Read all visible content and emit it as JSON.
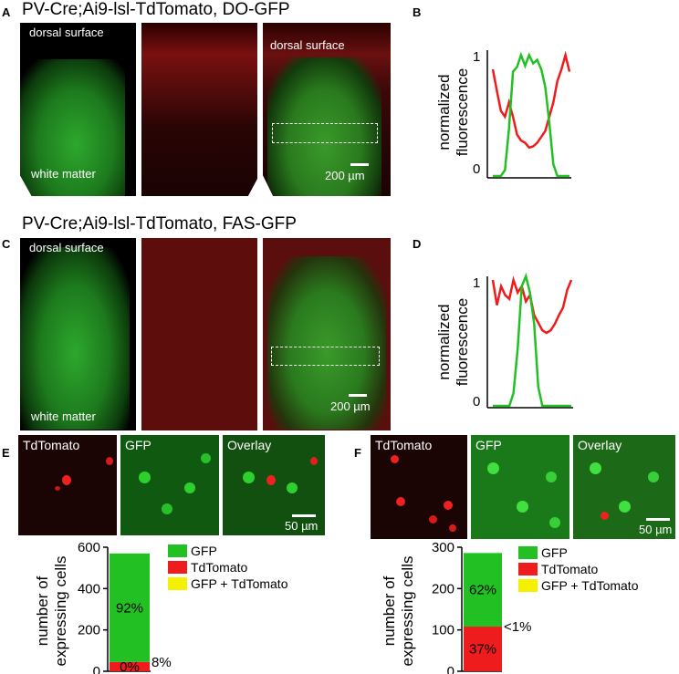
{
  "panel_labels": {
    "A": "A",
    "B": "B",
    "C": "C",
    "D": "D",
    "E": "E",
    "F": "F"
  },
  "row_a": {
    "title": "PV-Cre;Ai9-lsl-TdTomato, DO-GFP",
    "top_label": "dorsal surface",
    "bottom_label": "white matter",
    "scale_label": "200 µm"
  },
  "row_c": {
    "title": "PV-Cre;Ai9-lsl-TdTomato, FAS-GFP",
    "top_label": "dorsal surface",
    "bottom_label": "white matter",
    "scale_label": "200 µm"
  },
  "plot_b": {
    "ylabel_line1": "normalized",
    "ylabel_line2": "fluorescence",
    "ytick_top": "1",
    "ytick_bottom": "0"
  },
  "plot_d": {
    "ylabel_line1": "normalized",
    "ylabel_line2": "fluorescence",
    "ytick_top": "1",
    "ytick_bottom": "0"
  },
  "micro_e": {
    "labels": [
      "TdTomato",
      "GFP",
      "Overlay"
    ],
    "scale_label": "50 µm"
  },
  "micro_f": {
    "labels": [
      "TdTomato",
      "GFP",
      "Overlay"
    ],
    "scale_label": "50 µm"
  },
  "colors": {
    "gfp": "#22c022",
    "tdtomato": "#ee1c1c",
    "overlap": "#f5f000"
  },
  "chart_data": [
    {
      "type": "line",
      "panel": "B",
      "ylabel": "normalized fluorescence",
      "ylim": [
        0,
        1
      ],
      "series": [
        {
          "color": "red",
          "y": [
            0.9,
            0.72,
            0.55,
            0.5,
            0.62,
            0.5,
            0.35,
            0.3,
            0.28,
            0.24,
            0.25,
            0.28,
            0.33,
            0.38,
            0.5,
            0.62,
            0.8,
            0.9,
            1.02,
            0.88
          ]
        },
        {
          "color": "green",
          "y": [
            0,
            0,
            0,
            0.05,
            0.4,
            0.88,
            0.92,
            1.02,
            0.93,
            1.02,
            0.95,
            0.98,
            0.9,
            0.75,
            0.45,
            0.1,
            0,
            0,
            0,
            0
          ]
        }
      ]
    },
    {
      "type": "line",
      "panel": "D",
      "ylabel": "normalized fluorescence",
      "ylim": [
        0,
        1
      ],
      "series": [
        {
          "color": "red",
          "y": [
            1.0,
            0.8,
            0.95,
            0.88,
            0.85,
            1.0,
            0.9,
            0.95,
            0.83,
            0.88,
            0.72,
            0.66,
            0.6,
            0.58,
            0.6,
            0.65,
            0.72,
            0.78,
            0.92,
            1.0
          ]
        },
        {
          "color": "green",
          "y": [
            0,
            0,
            0,
            0,
            0,
            0.1,
            0.45,
            0.95,
            1.03,
            0.9,
            0.65,
            0.15,
            0,
            0,
            0,
            0,
            0,
            0,
            0,
            0
          ]
        }
      ]
    },
    {
      "type": "bar",
      "panel": "E",
      "ylabel": "number of expressing cells",
      "ylim": [
        0,
        600
      ],
      "yticks": [
        "0",
        "200",
        "400",
        "600"
      ],
      "legend": [
        "GFP",
        "TdTomato",
        "GFP + TdTomato"
      ],
      "stack": [
        {
          "name": "TdTomato",
          "value": 45,
          "label": "0%"
        },
        {
          "name": "GFP",
          "value": 525,
          "label": "92%"
        }
      ],
      "side_label": "8%"
    },
    {
      "type": "bar",
      "panel": "F",
      "ylabel": "number of expressing cells",
      "ylim": [
        0,
        300
      ],
      "yticks": [
        "0",
        "100",
        "200",
        "300"
      ],
      "legend": [
        "GFP",
        "TdTomato",
        "GFP + TdTomato"
      ],
      "stack": [
        {
          "name": "TdTomato",
          "value": 108,
          "label": "37%"
        },
        {
          "name": "GFP",
          "value": 178,
          "label": "62%"
        }
      ],
      "side_label": "<1%"
    }
  ]
}
